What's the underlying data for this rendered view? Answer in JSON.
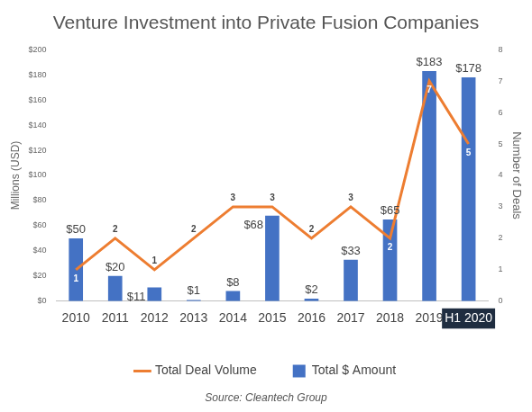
{
  "chart_data": {
    "type": "bar",
    "title": "Venture Investment into Private Fusion Companies",
    "caption": "Source: Cleantech Group",
    "categories": [
      "2010",
      "2011",
      "2012",
      "2013",
      "2014",
      "2015",
      "2016",
      "2017",
      "2018",
      "2019",
      "H1 2020"
    ],
    "series": [
      {
        "name": "Total $ Amount",
        "type": "bar",
        "color": "#4472c4",
        "axis": "y",
        "values": [
          50,
          20,
          11,
          1,
          8,
          68,
          2,
          33,
          65,
          183,
          178
        ],
        "value_labels": [
          "$50",
          "$20",
          "$11",
          "$1",
          "$8",
          "$68",
          "$2",
          "$33",
          "$65",
          "$183",
          "$178"
        ]
      },
      {
        "name": "Total Deal Volume",
        "type": "line",
        "color": "#ed7d31",
        "axis": "y2",
        "marker": "none",
        "values": [
          1,
          2,
          1,
          2,
          3,
          3,
          2,
          3,
          2,
          7,
          5
        ]
      }
    ],
    "ylabel": "Millions (USD)",
    "y2label": "Number of Deals",
    "ylim": [
      0,
      200
    ],
    "yticks": [
      {
        "value": 0,
        "label": "$0"
      },
      {
        "value": 20,
        "label": "$20"
      },
      {
        "value": 40,
        "label": "$40"
      },
      {
        "value": 60,
        "label": "$60"
      },
      {
        "value": 80,
        "label": "$80"
      },
      {
        "value": 100,
        "label": "$100"
      },
      {
        "value": 120,
        "label": "$120"
      },
      {
        "value": 140,
        "label": "$140"
      },
      {
        "value": 160,
        "label": "$160"
      },
      {
        "value": 180,
        "label": "$180"
      },
      {
        "value": 200,
        "label": "$200"
      }
    ],
    "y2lim": [
      0,
      8
    ],
    "y2ticks": [
      0,
      1,
      2,
      3,
      4,
      5,
      6,
      7,
      8
    ],
    "grid": false,
    "legend": "bottom",
    "data_labels": true
  }
}
